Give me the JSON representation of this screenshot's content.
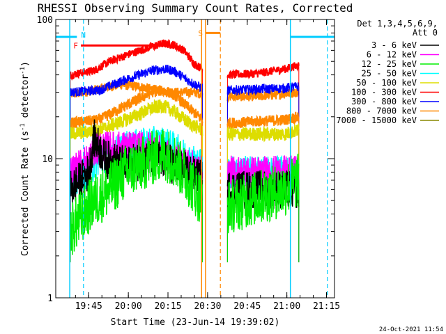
{
  "chart_data": {
    "type": "line",
    "title": "RHESSI Observing Summary Count Rates, Corrected",
    "xlabel": "Start Time (23-Jun-14 19:39:02)",
    "ylabel_main": "Corrected Count Rate (s",
    "ylabel_sup1": "-1",
    "ylabel_mid": " detector",
    "ylabel_sup2": "-1",
    "ylabel_end": ")",
    "y_scale": "log",
    "ylim": [
      1,
      100
    ],
    "xlim_minutes": [
      -6.5,
      99
    ],
    "x_ticks": [
      {
        "label": "19:45",
        "m": 5.97
      },
      {
        "label": "20:00",
        "m": 20.97
      },
      {
        "label": "20:15",
        "m": 35.97
      },
      {
        "label": "20:30",
        "m": 50.97
      },
      {
        "label": "20:45",
        "m": 65.97
      },
      {
        "label": "21:00",
        "m": 80.97
      },
      {
        "label": "21:15",
        "m": 95.97
      }
    ],
    "y_ticks": [
      {
        "label": "1",
        "v": 1
      },
      {
        "label": "10",
        "v": 10
      },
      {
        "label": "100",
        "v": 100
      }
    ],
    "legend": {
      "placement": "right",
      "header1": "Det 1,3,4,5,6,9,",
      "header2": "Att 0",
      "entries": [
        {
          "label": "3 - 6 keV",
          "color": "#000000"
        },
        {
          "label": "6 - 12 keV",
          "color": "#ff00ff"
        },
        {
          "label": "12 - 25 keV",
          "color": "#00ee00"
        },
        {
          "label": "25 - 50 keV",
          "color": "#00ffff"
        },
        {
          "label": "50 - 100 keV",
          "color": "#dddd00"
        },
        {
          "label": "100 - 300 keV",
          "color": "#ff0000"
        },
        {
          "label": "300 - 800 keV",
          "color": "#0000ff"
        },
        {
          "label": "800 - 7000 keV",
          "color": "#ff8800"
        },
        {
          "label": "7000 - 15000 keV",
          "color": "#888800"
        }
      ]
    },
    "segments": [
      {
        "start": -1.0,
        "end": 49.0
      },
      {
        "start": 58.5,
        "end": 85.5
      }
    ],
    "series": [
      {
        "color": "#ff8800",
        "width": 2.0,
        "noise": 0.035,
        "points": [
          [
            -1,
            29
          ],
          [
            4,
            30
          ],
          [
            8,
            31
          ],
          [
            14,
            33
          ],
          [
            18,
            34
          ],
          [
            25,
            33
          ],
          [
            32,
            31
          ],
          [
            38,
            30
          ],
          [
            46,
            30
          ],
          [
            49,
            29
          ],
          [
            58.5,
            28
          ],
          [
            70,
            28
          ],
          [
            78,
            29
          ],
          [
            85.5,
            30
          ]
        ]
      },
      {
        "color": "#ff0000",
        "width": 2.0,
        "noise": 0.03,
        "points": [
          [
            -1,
            40
          ],
          [
            8,
            43
          ],
          [
            14,
            50
          ],
          [
            22,
            57
          ],
          [
            30,
            64
          ],
          [
            34,
            67
          ],
          [
            38,
            66
          ],
          [
            42,
            60
          ],
          [
            46,
            48
          ],
          [
            49,
            44
          ],
          [
            58.5,
            40
          ],
          [
            70,
            41
          ],
          [
            80,
            44
          ],
          [
            85.5,
            47
          ]
        ]
      },
      {
        "color": "#0000ff",
        "width": 1.5,
        "noise": 0.035,
        "points": [
          [
            -1,
            30
          ],
          [
            10,
            31
          ],
          [
            20,
            37
          ],
          [
            30,
            43
          ],
          [
            34,
            44
          ],
          [
            38,
            43
          ],
          [
            44,
            36
          ],
          [
            49,
            32
          ],
          [
            58.5,
            31
          ],
          [
            80,
            32
          ],
          [
            85.5,
            33
          ]
        ]
      },
      {
        "color": "#ff8800",
        "width": 2.0,
        "noise": 0.04,
        "points": [
          [
            -1,
            18
          ],
          [
            10,
            19
          ],
          [
            20,
            24
          ],
          [
            30,
            30
          ],
          [
            34,
            31
          ],
          [
            38,
            29
          ],
          [
            44,
            23
          ],
          [
            49,
            19
          ],
          [
            58.5,
            18
          ],
          [
            80,
            19
          ],
          [
            85.5,
            20
          ]
        ]
      },
      {
        "color": "#dddd00",
        "width": 2.0,
        "noise": 0.05,
        "points": [
          [
            -1,
            15
          ],
          [
            10,
            16
          ],
          [
            20,
            19
          ],
          [
            30,
            23
          ],
          [
            34,
            24
          ],
          [
            38,
            22
          ],
          [
            44,
            18
          ],
          [
            49,
            16
          ],
          [
            58.5,
            15
          ],
          [
            80,
            15
          ],
          [
            85.5,
            16
          ]
        ]
      },
      {
        "color": "#00ffff",
        "width": 1.5,
        "noise": 0.12,
        "points": [
          [
            -1,
            7
          ],
          [
            6,
            8
          ],
          [
            10,
            10
          ],
          [
            20,
            12
          ],
          [
            30,
            13
          ],
          [
            34,
            13
          ],
          [
            38,
            12
          ],
          [
            44,
            10
          ],
          [
            49,
            9
          ],
          [
            58.5,
            8
          ],
          [
            80,
            8
          ],
          [
            85.5,
            8
          ]
        ]
      },
      {
        "color": "#ff00ff",
        "width": 1.5,
        "noise": 0.12,
        "points": [
          [
            -1,
            8
          ],
          [
            6,
            10
          ],
          [
            10,
            12
          ],
          [
            20,
            12
          ],
          [
            30,
            12
          ],
          [
            34,
            11
          ],
          [
            38,
            10
          ],
          [
            44,
            9
          ],
          [
            49,
            8
          ],
          [
            58.5,
            8
          ],
          [
            80,
            8
          ],
          [
            85.5,
            8
          ]
        ]
      },
      {
        "color": "#000000",
        "width": 1.5,
        "noise": 0.14,
        "points": [
          [
            -1,
            6
          ],
          [
            6,
            8
          ],
          [
            8,
            14
          ],
          [
            12,
            10
          ],
          [
            20,
            9
          ],
          [
            30,
            10
          ],
          [
            34,
            10
          ],
          [
            38,
            9
          ],
          [
            44,
            8
          ],
          [
            49,
            7
          ],
          [
            58.5,
            6
          ],
          [
            80,
            6
          ],
          [
            85.5,
            6
          ]
        ]
      },
      {
        "color": "#00ee00",
        "width": 1.5,
        "noise": 0.2,
        "points": [
          [
            -1,
            3
          ],
          [
            4,
            4
          ],
          [
            8,
            5
          ],
          [
            14,
            6
          ],
          [
            20,
            8
          ],
          [
            30,
            10
          ],
          [
            34,
            11
          ],
          [
            38,
            10
          ],
          [
            44,
            7
          ],
          [
            49,
            5
          ],
          [
            58.5,
            4.5
          ],
          [
            80,
            6
          ],
          [
            85.5,
            7
          ]
        ]
      }
    ],
    "annotations": {
      "flare_label": "F",
      "flare_color": "#ff0000",
      "flare_start_m": 3.0,
      "flare_end_m": 38.5,
      "flare_value": 65,
      "night_label": "N",
      "night_color": "#00ccff",
      "night_left": {
        "start_m": -6.5,
        "end_m": 1.5,
        "value": 75
      },
      "night_right": {
        "start_m": 82.5,
        "end_m": 99,
        "value": 75
      },
      "night_vlines_solid_m": [
        -1.2,
        82.3
      ],
      "night_vlines_dashed_m": [
        4.0,
        96.3
      ],
      "saa_label": "S",
      "saa_color": "#ff8800",
      "saa_start_m": 50.2,
      "saa_end_m": 55.8,
      "saa_value": 80,
      "saa_vlines_solid_m": [
        48.7,
        50.2
      ],
      "saa_vlines_dashed_m": [
        55.8
      ]
    },
    "footer_timestamp": "24-Oct-2021 11:54"
  }
}
